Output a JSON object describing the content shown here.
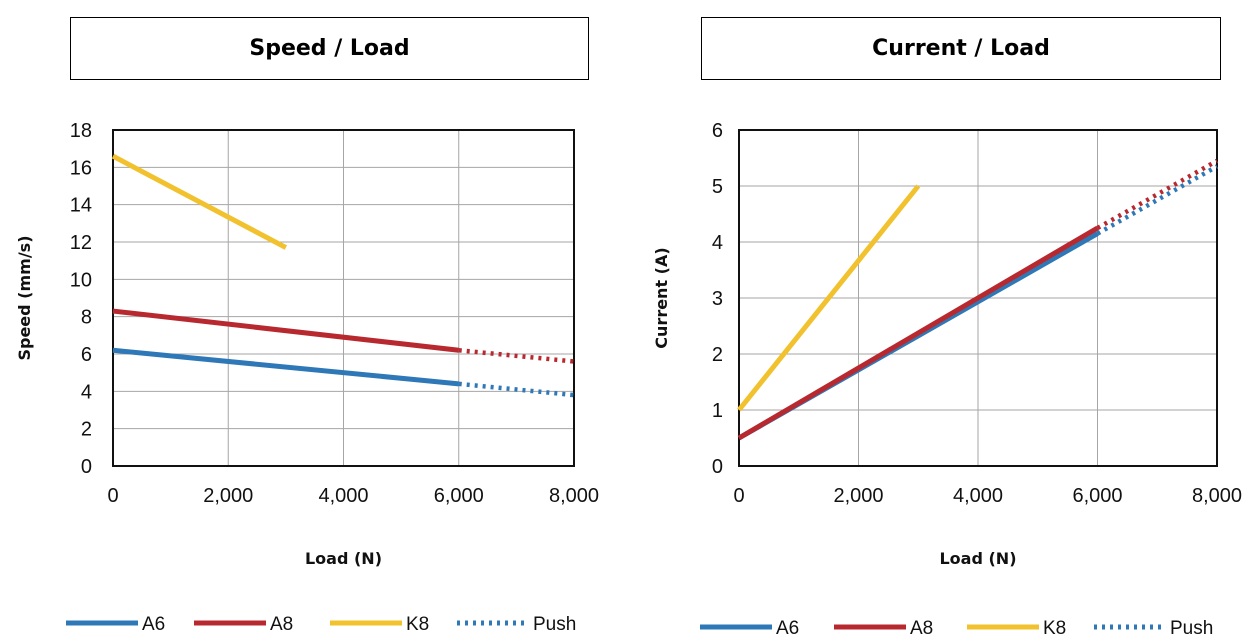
{
  "colors": {
    "A6": "#2e78b7",
    "A8": "#b8292f",
    "K8": "#f2c12e",
    "Push": "#2e78b7",
    "grid": "#a6a6a6"
  },
  "chart_data": [
    {
      "type": "line",
      "title": "Speed / Load",
      "xlabel": "Load (N)",
      "ylabel": "Speed (mm/s)",
      "xlim": [
        0,
        8000
      ],
      "ylim": [
        0,
        18
      ],
      "xticks": [
        0,
        2000,
        4000,
        6000,
        8000
      ],
      "xtick_labels": [
        "0",
        "2,000",
        "4,000",
        "6,000",
        "8,000"
      ],
      "yticks": [
        0,
        2,
        4,
        6,
        8,
        10,
        12,
        14,
        16,
        18
      ],
      "ytick_labels": [
        "0",
        "2",
        "4",
        "6",
        "8",
        "10",
        "12",
        "14",
        "16",
        "18"
      ],
      "grid": true,
      "legend_position": "bottom",
      "series": [
        {
          "name": "A6",
          "x": [
            0,
            6000
          ],
          "y": [
            6.2,
            4.4
          ]
        },
        {
          "name": "A8",
          "x": [
            0,
            6000
          ],
          "y": [
            8.3,
            6.2
          ]
        },
        {
          "name": "K8",
          "x": [
            0,
            3000
          ],
          "y": [
            16.6,
            11.7
          ]
        },
        {
          "name": "Push",
          "style": "dotted",
          "segments": [
            {
              "of": "A6",
              "x": [
                6000,
                8000
              ],
              "y": [
                4.4,
                3.8
              ]
            },
            {
              "of": "A8",
              "x": [
                6000,
                8000
              ],
              "y": [
                6.2,
                5.6
              ]
            }
          ]
        }
      ]
    },
    {
      "type": "line",
      "title": "Current / Load",
      "xlabel": "Load (N)",
      "ylabel": "Current (A)",
      "xlim": [
        0,
        8000
      ],
      "ylim": [
        0,
        6
      ],
      "xticks": [
        0,
        2000,
        4000,
        6000,
        8000
      ],
      "xtick_labels": [
        "0",
        "2,000",
        "4,000",
        "6,000",
        "8,000"
      ],
      "yticks": [
        0,
        1,
        2,
        3,
        4,
        5,
        6
      ],
      "ytick_labels": [
        "0",
        "1",
        "2",
        "3",
        "4",
        "5",
        "6"
      ],
      "grid": true,
      "legend_position": "bottom",
      "series": [
        {
          "name": "A6",
          "x": [
            0,
            6000
          ],
          "y": [
            0.5,
            4.15
          ]
        },
        {
          "name": "A8",
          "x": [
            0,
            6000
          ],
          "y": [
            0.5,
            4.25
          ]
        },
        {
          "name": "K8",
          "x": [
            0,
            3000
          ],
          "y": [
            1.0,
            5.0
          ]
        },
        {
          "name": "Push",
          "style": "dotted",
          "segments": [
            {
              "of": "A6",
              "x": [
                6000,
                8000
              ],
              "y": [
                4.15,
                5.35
              ]
            },
            {
              "of": "A8",
              "x": [
                6000,
                8000
              ],
              "y": [
                4.25,
                5.45
              ]
            }
          ]
        }
      ]
    }
  ]
}
